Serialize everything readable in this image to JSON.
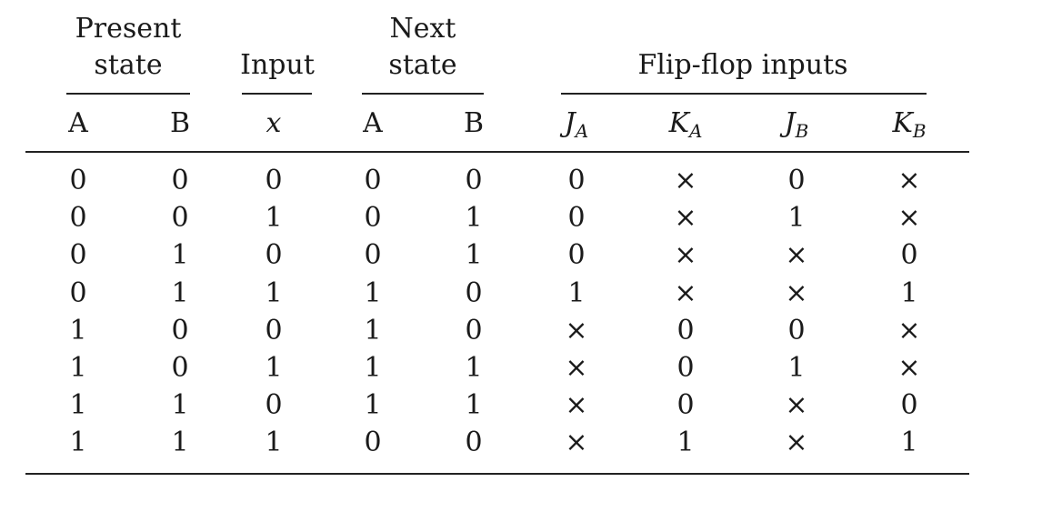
{
  "table": {
    "group_headers": {
      "present_state": [
        "Present",
        "state"
      ],
      "input": "Input",
      "next_state": [
        "Next",
        "state"
      ],
      "flip_flop_inputs": "Flip-flop inputs"
    },
    "columns": [
      {
        "main": "A",
        "sub": ""
      },
      {
        "main": "B",
        "sub": ""
      },
      {
        "main": "x",
        "sub": ""
      },
      {
        "main": "A",
        "sub": ""
      },
      {
        "main": "B",
        "sub": ""
      },
      {
        "main": "J",
        "sub": "A"
      },
      {
        "main": "K",
        "sub": "A"
      },
      {
        "main": "J",
        "sub": "B"
      },
      {
        "main": "K",
        "sub": "B"
      }
    ],
    "rows": [
      [
        "0",
        "0",
        "0",
        "0",
        "0",
        "0",
        "×",
        "0",
        "×"
      ],
      [
        "0",
        "0",
        "1",
        "0",
        "1",
        "0",
        "×",
        "1",
        "×"
      ],
      [
        "0",
        "1",
        "0",
        "0",
        "1",
        "0",
        "×",
        "×",
        "0"
      ],
      [
        "0",
        "1",
        "1",
        "1",
        "0",
        "1",
        "×",
        "×",
        "1"
      ],
      [
        "1",
        "0",
        "0",
        "1",
        "0",
        "×",
        "0",
        "0",
        "×"
      ],
      [
        "1",
        "0",
        "1",
        "1",
        "1",
        "×",
        "0",
        "1",
        "×"
      ],
      [
        "1",
        "1",
        "0",
        "1",
        "1",
        "×",
        "0",
        "×",
        "0"
      ],
      [
        "1",
        "1",
        "1",
        "0",
        "0",
        "×",
        "1",
        "×",
        "1"
      ]
    ]
  }
}
